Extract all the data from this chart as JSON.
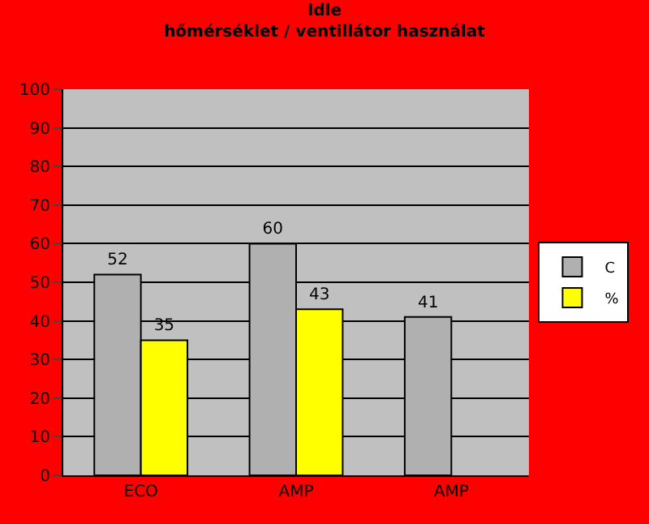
{
  "chart_data": {
    "type": "bar",
    "title": "Idle",
    "subtitle": "hőmérséklet / ventillátor használat",
    "categories": [
      "ECO",
      "AMP",
      "AMP"
    ],
    "series": [
      {
        "name": "C",
        "color": "#b0b0b0",
        "values": [
          52,
          60,
          41
        ]
      },
      {
        "name": "%",
        "color": "#ffff00",
        "values": [
          35,
          43,
          null
        ]
      }
    ],
    "ylim": [
      0,
      100
    ],
    "yticks": [
      0,
      10,
      20,
      30,
      40,
      50,
      60,
      70,
      80,
      90,
      100
    ],
    "grid": "y",
    "legend": "right",
    "data_labels": true
  }
}
